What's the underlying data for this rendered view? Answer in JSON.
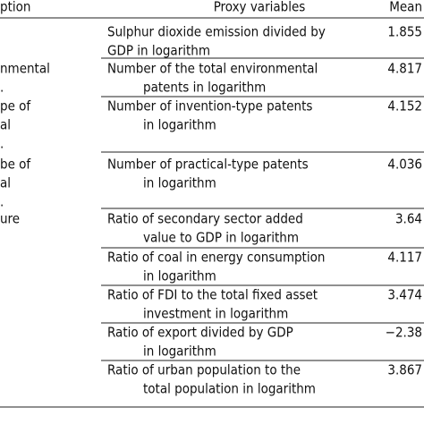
{
  "table": {
    "header": [
      "ption",
      "Proxy variables",
      "Mean"
    ],
    "rows": [
      {
        "label": [],
        "proxy": [
          "Sulphur dioxide emission divided by",
          "GDP in logarithm"
        ],
        "mean": "1.855"
      },
      {
        "label": [
          "nmental",
          "."
        ],
        "proxy": [
          "Number of the total environmental",
          "patents in logarithm"
        ],
        "mean": "4.817"
      },
      {
        "label": [
          "pe of",
          "al",
          "."
        ],
        "proxy": [
          "Number of invention-type patents",
          "in logarithm"
        ],
        "mean": "4.152"
      },
      {
        "label": [
          "be of",
          "al",
          "."
        ],
        "proxy": [
          "Number of practical-type patents",
          "in logarithm"
        ],
        "mean": "4.036"
      },
      {
        "label": [
          "ure"
        ],
        "proxy": [
          "Ratio of secondary sector added",
          "value to GDP in logarithm"
        ],
        "mean": "3.64"
      },
      {
        "label": [],
        "proxy": [
          "Ratio of coal in energy consumption",
          "in logarithm"
        ],
        "mean": "4.117"
      },
      {
        "label": [],
        "proxy": [
          "Ratio of FDI to the total fixed asset",
          "investment in logarithm"
        ],
        "mean": "3.474"
      },
      {
        "label": [],
        "proxy": [
          "Ratio of export divided by GDP",
          "in logarithm"
        ],
        "mean": "−2.38"
      },
      {
        "label": [],
        "proxy": [
          "Ratio of urban population to the",
          "total population in logarithm"
        ],
        "mean": "3.867"
      }
    ]
  }
}
